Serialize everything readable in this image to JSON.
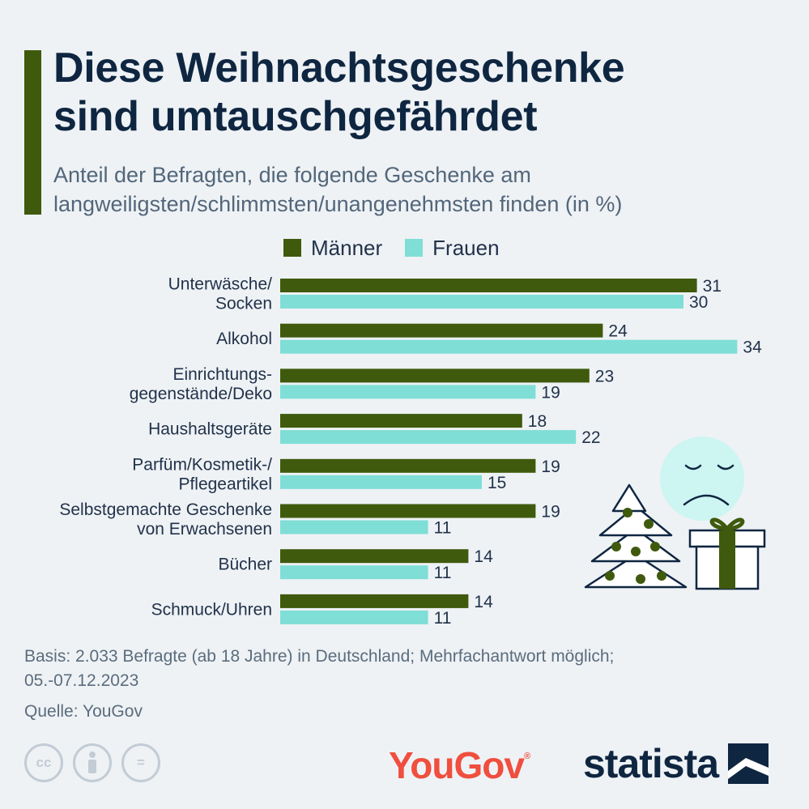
{
  "title_line1": "Diese Weihnachtsgeschenke",
  "title_line2": "sind umtauschgefährdet",
  "subtitle_line1": "Anteil der Befragten, die folgende Geschenke am",
  "subtitle_line2": "langweiligsten/schlimmsten/unangenehmsten finden (in %)",
  "colors": {
    "men": "#3f5a0d",
    "women": "#7fded6",
    "accent": "#3f5a0d",
    "title": "#0f2641"
  },
  "legend": {
    "men": "Männer",
    "women": "Frauen"
  },
  "chart_data": {
    "type": "bar",
    "orientation": "horizontal",
    "categories": [
      [
        "Unterwäsche/",
        "Socken"
      ],
      [
        "Alkohol"
      ],
      [
        "Einrichtungs-",
        "gegenstände/Deko"
      ],
      [
        "Haushaltsgeräte"
      ],
      [
        "Parfüm/Kosmetik-/",
        "Pflegeartikel"
      ],
      [
        "Selbstgemachte Geschenke",
        "von Erwachsenen"
      ],
      [
        "Bücher"
      ],
      [
        "Schmuck/Uhren"
      ]
    ],
    "series": [
      {
        "name": "Männer",
        "values": [
          31,
          24,
          23,
          18,
          19,
          19,
          14,
          14
        ]
      },
      {
        "name": "Frauen",
        "values": [
          30,
          34,
          19,
          22,
          15,
          11,
          11,
          11
        ]
      }
    ],
    "xlim": [
      0,
      34
    ],
    "unit": "%"
  },
  "footnote_line1": "Basis: 2.033 Befragte (ab 18 Jahre) in Deutschland; Mehrfachantwort möglich;",
  "footnote_line2": "05.-07.12.2023",
  "source": "Quelle: YouGov",
  "icons": [
    "cc-icon",
    "by-icon",
    "nd-icon"
  ],
  "cc_labels": {
    "cc": "cc",
    "eq": "="
  },
  "yougov_logo": "YouGov",
  "yougov_reg": "®",
  "statista_logo": "statista"
}
